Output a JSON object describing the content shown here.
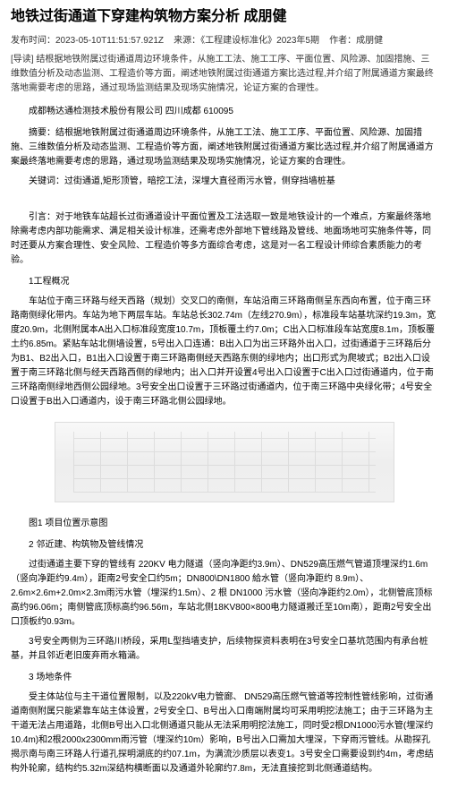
{
  "title": "地铁过街通道下穿建构筑物方案分析 成朋健",
  "meta": {
    "publish_label": "发布时间：",
    "publish_time": "2023-05-10T11:51:57.921Z",
    "source_label": "来源：",
    "source": "《工程建设标准化》2023年5期",
    "author_label": "作者：",
    "author": "成朋健"
  },
  "abstract_lead": "[导读] 结根据地铁附属过街通道周边环境条件，从施工工法、施工工序、平面位置、风险源、加固措施、三维数值分析及动态监测、工程造价等方面，阐述地铁附属过街通道方案比选过程,并介绍了附属通道方案最终落地需要考虑的思路，通过现场监测结果及现场实施情况，论证方案的合理性。",
  "author_org": "成都畅达通检测技术股份有限公司  四川成都  610095",
  "summary_label": "摘要：",
  "summary": "结根据地铁附属过街通道周边环境条件，从施工工法、施工工序、平面位置、风险源、加固措施、三维数值分析及动态监测、工程造价等方面，阐述地铁附属过街通道方案比选过程,并介绍了附属通道方案最终落地需要考虑的思路，通过现场监测结果及现场实施情况，论证方案的合理性。",
  "keywords_label": "关键词：",
  "keywords": "过街通道,矩形顶管，暗挖工法，深埋大直径雨污水管，侧穿挡墙桩基",
  "intro": "引言：对于地铁车站超长过街通道设计平面位置及工法选取一致是地铁设计的一个难点，方案最终落地除需考虑内部功能需求、满足相关设计标准，还需考虑外部地下管线路及管线、地面场地可实施条件等，同时还要从方案合理性、安全风险、工程造价等多方面综合考虑，这是对一名工程设计师综合素质能力的考验。",
  "sections": {
    "s1": {
      "heading": "1工程概况",
      "p1": "车站位于南三环路与经天西路（规划）交叉口的南侧，车站沿南三环路南侧呈东西向布置，位于南三环路南侧绿化带内。车站为地下两层车站。车站总长302.74m（左线270.9m），标准段车站基坑深约19.3m，宽度20.9m，北侧附属本A出入口标准段宽度10.7m，顶板覆土约7.0m；C出入口标准段车站宽度8.1m，顶板覆土约6.85m。紧贴车站北侧墙设置，5号出入口连通：B出入口为出三环路外出入口，过街通道于三环路后分为B1、B2出入口，B1出入口设置于南三环路南侧经天西路东侧的绿地内；出口形式为爬坡式；B2出入口设置于南三环路北侧与经天西路西侧的绿地内；出入口并开设置4号出入口设置于C出入口过街通道内，位于南三环路南侧绿地西侧公园绿地。3号安全出口设置于三环路过街通道内，位于南三环路中央绿化带；4号安全口设置于B出入口通道内，设于南三环路北侧公园绿地。"
    },
    "figure1_caption": "图1 项目位置示意图",
    "s2": {
      "heading": "2 邻近建、构筑物及管线情况",
      "p1": "过街通道主要下穿的管线有 220KV 电力隧道（竖向净距约3.9m）、DN529高压燃气管道顶埋深约1.6m（竖向净距约9.4m），距南2号安全口约5m；DN800\\DN1800 給水管（竖向净距约 8.9m）、2.6m×2.6m+2.0m×2.3m雨污水管（埋深约1.5m）、2 根 DN1000 污水管（竖向净距约2.0m），北侧管底顶标高约96.06m；南侧管底顶标高约96.56m，车站北侧18KV800×800电力隧道搬迁至10m南），距南2号安全出口顶板约0.93m。",
      "p2": "3号安全两侧为三环路川桥段，采用L型挡墙支护，后续物探资料表明在3号安全口基坑范围内有承台桩基，并且邻近老旧废弃雨水箱涵。"
    },
    "s3": {
      "heading": "3 场地条件",
      "p1": "受主体站位与主干道位置限制，以及220kV电力管廊、 DN529高压燃气管道等控制性管线影响，过街通道南侧附属只能紧靠车站主体设置，2号安全口、B号出入口南端附属均可采用明挖法施工；由于三环路为主干道无法占用道路，北侧B号出入口北侧通道只能从无法采用明挖法施工，同时受2根DN1000污水管(埋深约10.4m)和2根2000x2300mm雨污管（埋深约10m）影响，B号出入口需加大埋深，下穿雨污管线。从勘探孔揭示南与南三环路人行道孔探明湖底的约07.1m，为满流沙质层以表变1。3号安全口需要设到约4m，考虑结构外轮廓，结构约5.32m深结构横断面以及通道外轮廓约7.8m，无法直接挖到北侧通道结构。"
    }
  }
}
